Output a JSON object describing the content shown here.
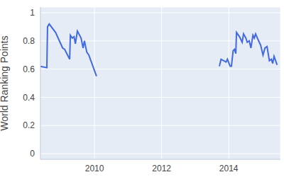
{
  "chart_data": {
    "type": "line",
    "y_label": "World Ranking Points",
    "x": [
      2008.39,
      2008.58,
      2008.6,
      2008.65,
      2008.84,
      2009.05,
      2009.11,
      2009.26,
      2009.28,
      2009.34,
      2009.39,
      2009.43,
      2009.49,
      2009.6,
      2009.66,
      2009.7,
      2009.77,
      2009.83,
      2010.06,
      2012.0,
      2013.72,
      2013.77,
      2013.92,
      2013.96,
      2014.04,
      2014.08,
      2014.13,
      2014.17,
      2014.21,
      2014.23,
      2014.32,
      2014.38,
      2014.4,
      2014.44,
      2014.51,
      2014.55,
      2014.61,
      2014.66,
      2014.72,
      2014.76,
      2014.8,
      2014.89,
      2014.95,
      2015.02,
      2015.08,
      2015.14,
      2015.21,
      2015.27,
      2015.31,
      2015.35,
      2015.44
    ],
    "values": [
      0.62,
      0.61,
      0.9,
      0.92,
      0.86,
      0.75,
      0.74,
      0.67,
      0.84,
      0.82,
      0.83,
      0.78,
      0.87,
      0.82,
      0.75,
      0.8,
      0.72,
      0.7,
      0.55,
      null,
      0.62,
      0.67,
      0.65,
      0.67,
      0.62,
      0.62,
      0.73,
      0.74,
      0.71,
      0.86,
      0.83,
      0.8,
      0.79,
      0.85,
      0.82,
      0.79,
      0.8,
      0.75,
      0.84,
      0.82,
      0.85,
      0.8,
      0.77,
      0.7,
      0.75,
      0.76,
      0.66,
      0.67,
      0.64,
      0.69,
      0.63
    ],
    "color": "#4169e1",
    "xlim": [
      2008.39,
      2015.54
    ],
    "ylim": [
      -0.04,
      1.04
    ],
    "xticks": [
      2010,
      2012,
      2014
    ],
    "yticks": [
      0,
      0.2,
      0.4,
      0.6,
      0.8,
      1
    ],
    "grid": true
  }
}
